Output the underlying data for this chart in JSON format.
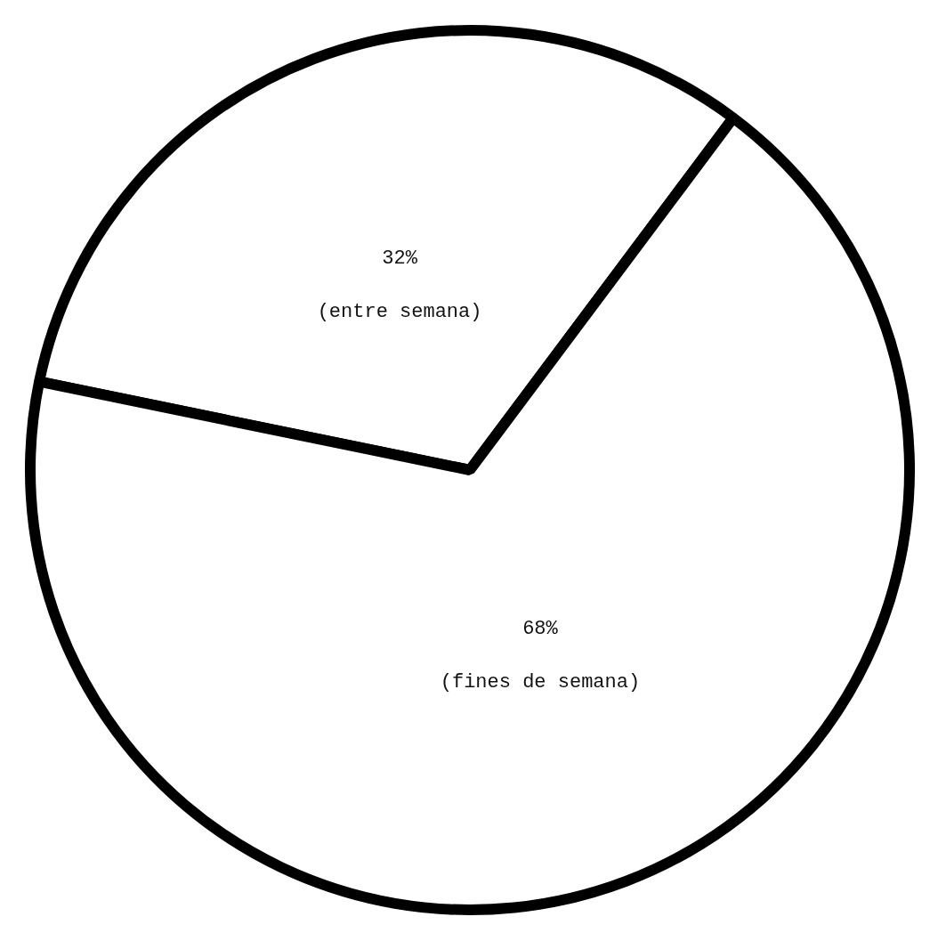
{
  "chart_data": {
    "type": "pie",
    "categories": [
      "(entre semana)",
      "(fines de semana)"
    ],
    "values": [
      32,
      68
    ],
    "colors": [
      "#ffffff",
      "#ffffff"
    ],
    "value_labels": [
      "32%",
      "68%"
    ],
    "legend": false
  }
}
